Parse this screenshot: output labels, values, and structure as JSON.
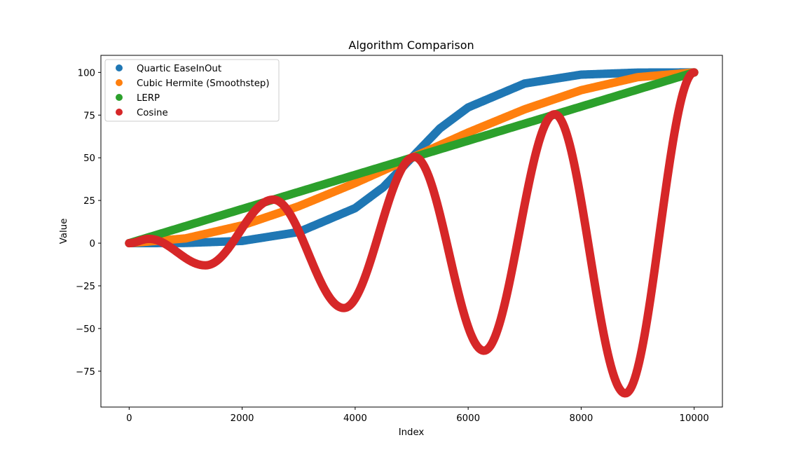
{
  "chart_data": {
    "type": "scatter",
    "title": "Algorithm Comparison",
    "xlabel": "Index",
    "ylabel": "Value",
    "xlim": [
      -500,
      10500
    ],
    "ylim": [
      -96,
      110
    ],
    "x_ticks": [
      0,
      2000,
      4000,
      6000,
      8000,
      10000
    ],
    "y_ticks": [
      -75,
      -50,
      -25,
      0,
      25,
      50,
      75,
      100
    ],
    "x_tick_labels": [
      "0",
      "2000",
      "4000",
      "6000",
      "8000",
      "10000"
    ],
    "y_tick_labels": [
      "−75",
      "−50",
      "−25",
      "0",
      "25",
      "50",
      "75",
      "100"
    ],
    "grid": false,
    "legend_position": "top-left",
    "x_range": [
      0,
      10000
    ],
    "series": [
      {
        "name": "Quartic EaseInOut",
        "color": "#1f77b4",
        "x": [
          0,
          1000,
          2000,
          3000,
          4000,
          4500,
          5000,
          5500,
          6000,
          7000,
          8000,
          9000,
          10000
        ],
        "y": [
          0,
          0.1,
          1.3,
          6.5,
          20.5,
          32.8,
          50,
          67.2,
          79.5,
          93.5,
          98.7,
          99.9,
          100
        ]
      },
      {
        "name": "Cubic Hermite (Smoothstep)",
        "color": "#ff7f0e",
        "x": [
          0,
          1000,
          2000,
          3000,
          4000,
          5000,
          6000,
          7000,
          8000,
          9000,
          10000
        ],
        "y": [
          0,
          2.8,
          10.4,
          21.6,
          35.2,
          50,
          64.8,
          78.4,
          89.6,
          97.2,
          100
        ]
      },
      {
        "name": "LERP",
        "color": "#2ca02c",
        "x": [
          0,
          10000
        ],
        "y": [
          0,
          100
        ]
      },
      {
        "name": "Cosine",
        "color": "#d62728",
        "x": [
          0,
          350,
          1350,
          2550,
          3800,
          5050,
          6280,
          7530,
          8780,
          10000
        ],
        "y": [
          0,
          2.5,
          -13,
          25.5,
          -38,
          50.5,
          -63,
          75.5,
          -88,
          100
        ]
      }
    ]
  }
}
